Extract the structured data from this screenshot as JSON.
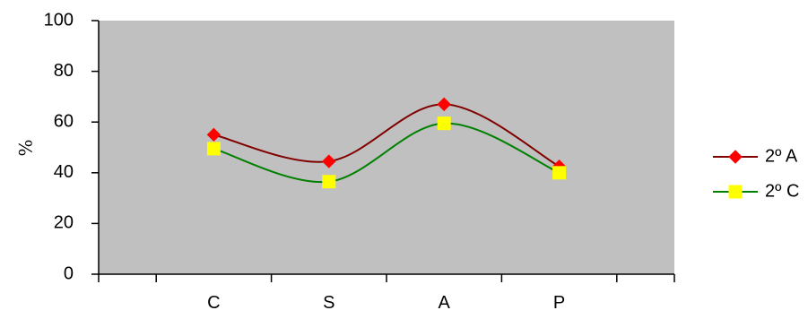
{
  "chart_data": {
    "type": "line",
    "categories": [
      "C",
      "S",
      "A",
      "P"
    ],
    "series": [
      {
        "name": "2º A",
        "values": [
          55,
          44.5,
          67,
          42.5
        ],
        "color": "#800000",
        "marker": "diamond",
        "marker_color": "#ff0000"
      },
      {
        "name": "2º C",
        "values": [
          49.5,
          36.5,
          59.5,
          40
        ],
        "color": "#008000",
        "marker": "square",
        "marker_color": "#ffff00"
      }
    ],
    "ylabel": "%",
    "ylim": [
      0,
      100
    ],
    "yticks": [
      "0",
      "20",
      "40",
      "60",
      "80",
      "100"
    ],
    "plot_background": "#c0c0c0",
    "smooth": true,
    "grid": false,
    "legend_position": "right"
  }
}
